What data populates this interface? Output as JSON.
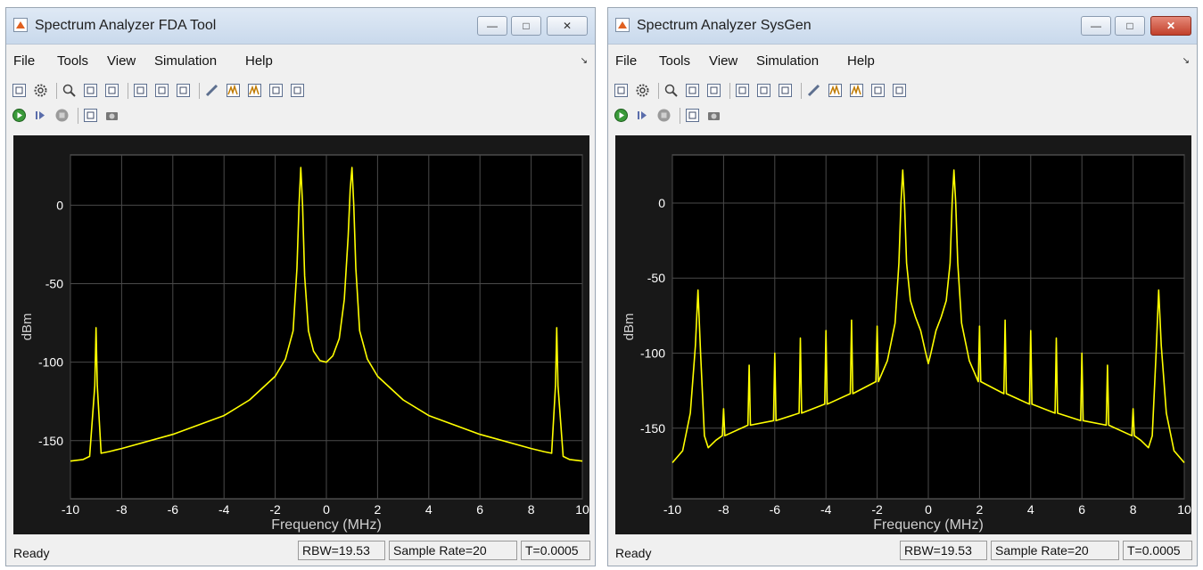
{
  "left_window": {
    "title": "Spectrum Analyzer FDA Tool",
    "menu": [
      "File",
      "Tools",
      "View",
      "Simulation",
      "Help"
    ],
    "status": {
      "ready": "Ready",
      "rbw": "RBW=19.53",
      "sample_rate": "Sample Rate=20",
      "time": "T=0.0005"
    }
  },
  "right_window": {
    "title": "Spectrum Analyzer SysGen",
    "menu": [
      "File",
      "Tools",
      "View",
      "Simulation",
      "Help"
    ],
    "status": {
      "ready": "Ready",
      "rbw": "RBW=19.53",
      "sample_rate": "Sample Rate=20",
      "time": "T=0.0005"
    }
  },
  "toolbar_icons": {
    "row1": [
      "settings-icon",
      "gear-icon",
      "zoom-in-icon",
      "zoom-x-icon",
      "zoom-y-icon",
      "pan-horizontal-icon",
      "pan-vertical-icon",
      "fit-to-view-icon",
      "measure-icon",
      "peak-finder-icon",
      "channel-measurements-icon",
      "distortion-icon",
      "ccdf-icon"
    ],
    "row2": [
      "run-icon",
      "step-icon",
      "stop-icon",
      "highlight-simulink-icon",
      "snapshot-icon"
    ]
  },
  "colors": {
    "trace": "#ffff00",
    "plot_bg": "#181818",
    "grid": "#4a4a4a",
    "axis_text": "#ffffff"
  },
  "chart_data": [
    {
      "type": "line",
      "xlabel": "Frequency (MHz)",
      "ylabel": "dBm",
      "xlim": [
        -10,
        10
      ],
      "ylim": [
        -187,
        32
      ],
      "xticks": [
        -10,
        -8,
        -6,
        -4,
        -2,
        0,
        2,
        4,
        6,
        8,
        10
      ],
      "yticks": [
        0,
        -50,
        -100,
        -150
      ],
      "grid": true,
      "series": [
        {
          "color": "#ffff00",
          "points": [
            [
              -10,
              -163
            ],
            [
              -9.5,
              -162
            ],
            [
              -9.25,
              -160
            ],
            [
              -9.05,
              -115
            ],
            [
              -9,
              -78
            ],
            [
              -8.95,
              -115
            ],
            [
              -8.8,
              -158
            ],
            [
              -8.5,
              -157
            ],
            [
              -8,
              -155
            ],
            [
              -6,
              -146
            ],
            [
              -4,
              -134
            ],
            [
              -3,
              -124
            ],
            [
              -2,
              -109
            ],
            [
              -1.6,
              -98
            ],
            [
              -1.3,
              -80
            ],
            [
              -1.15,
              -40
            ],
            [
              -1.07,
              0
            ],
            [
              -1,
              24
            ],
            [
              -0.93,
              0
            ],
            [
              -0.85,
              -45
            ],
            [
              -0.7,
              -80
            ],
            [
              -0.5,
              -93
            ],
            [
              -0.25,
              -99
            ],
            [
              0,
              -100
            ],
            [
              0.25,
              -96
            ],
            [
              0.5,
              -85
            ],
            [
              0.7,
              -60
            ],
            [
              0.85,
              -20
            ],
            [
              0.93,
              10
            ],
            [
              1,
              24
            ],
            [
              1.07,
              0
            ],
            [
              1.15,
              -40
            ],
            [
              1.3,
              -80
            ],
            [
              1.6,
              -98
            ],
            [
              2,
              -109
            ],
            [
              3,
              -124
            ],
            [
              4,
              -134
            ],
            [
              6,
              -146
            ],
            [
              8,
              -155
            ],
            [
              8.5,
              -157
            ],
            [
              8.8,
              -158
            ],
            [
              8.95,
              -115
            ],
            [
              9,
              -78
            ],
            [
              9.05,
              -115
            ],
            [
              9.25,
              -160
            ],
            [
              9.5,
              -162
            ],
            [
              10,
              -163
            ]
          ]
        }
      ]
    },
    {
      "type": "line",
      "xlabel": "Frequency (MHz)",
      "ylabel": "dBm",
      "xlim": [
        -10,
        10
      ],
      "ylim": [
        -197,
        32
      ],
      "xticks": [
        -10,
        -8,
        -6,
        -4,
        -2,
        0,
        2,
        4,
        6,
        8,
        10
      ],
      "yticks": [
        0,
        -50,
        -100,
        -150
      ],
      "grid": true,
      "series": [
        {
          "color": "#ffff00",
          "points": [
            [
              -10,
              -173
            ],
            [
              -9.6,
              -165
            ],
            [
              -9.3,
              -140
            ],
            [
              -9.1,
              -95
            ],
            [
              -9,
              -58
            ],
            [
              -8.9,
              -100
            ],
            [
              -8.75,
              -155
            ],
            [
              -8.6,
              -163
            ],
            [
              -8.3,
              -158
            ],
            [
              -8.05,
              -155
            ],
            [
              -8,
              -137
            ],
            [
              -7.95,
              -155
            ],
            [
              -7.05,
              -148
            ],
            [
              -7,
              -108
            ],
            [
              -6.95,
              -148
            ],
            [
              -6.05,
              -145
            ],
            [
              -6,
              -100
            ],
            [
              -5.95,
              -145
            ],
            [
              -5.05,
              -140
            ],
            [
              -5,
              -90
            ],
            [
              -4.95,
              -140
            ],
            [
              -4.05,
              -134
            ],
            [
              -4,
              -85
            ],
            [
              -3.95,
              -134
            ],
            [
              -3.05,
              -127
            ],
            [
              -3,
              -78
            ],
            [
              -2.95,
              -127
            ],
            [
              -2.05,
              -119
            ],
            [
              -2,
              -82
            ],
            [
              -1.95,
              -119
            ],
            [
              -1.6,
              -105
            ],
            [
              -1.3,
              -80
            ],
            [
              -1.15,
              -40
            ],
            [
              -1.07,
              0
            ],
            [
              -1,
              22
            ],
            [
              -0.93,
              0
            ],
            [
              -0.85,
              -40
            ],
            [
              -0.7,
              -65
            ],
            [
              -0.5,
              -76
            ],
            [
              -0.3,
              -85
            ],
            [
              -0.1,
              -100
            ],
            [
              0,
              -107
            ],
            [
              0.1,
              -100
            ],
            [
              0.3,
              -85
            ],
            [
              0.5,
              -76
            ],
            [
              0.7,
              -65
            ],
            [
              0.85,
              -40
            ],
            [
              0.93,
              0
            ],
            [
              1,
              22
            ],
            [
              1.07,
              0
            ],
            [
              1.15,
              -40
            ],
            [
              1.3,
              -80
            ],
            [
              1.6,
              -105
            ],
            [
              1.95,
              -119
            ],
            [
              2,
              -82
            ],
            [
              2.05,
              -119
            ],
            [
              2.95,
              -127
            ],
            [
              3,
              -78
            ],
            [
              3.05,
              -127
            ],
            [
              3.95,
              -134
            ],
            [
              4,
              -85
            ],
            [
              4.05,
              -134
            ],
            [
              4.95,
              -140
            ],
            [
              5,
              -90
            ],
            [
              5.05,
              -140
            ],
            [
              5.95,
              -145
            ],
            [
              6,
              -100
            ],
            [
              6.05,
              -145
            ],
            [
              6.95,
              -148
            ],
            [
              7,
              -108
            ],
            [
              7.05,
              -148
            ],
            [
              7.95,
              -155
            ],
            [
              8,
              -137
            ],
            [
              8.05,
              -155
            ],
            [
              8.3,
              -158
            ],
            [
              8.6,
              -163
            ],
            [
              8.75,
              -155
            ],
            [
              8.9,
              -100
            ],
            [
              9,
              -58
            ],
            [
              9.1,
              -95
            ],
            [
              9.3,
              -140
            ],
            [
              9.6,
              -165
            ],
            [
              10,
              -173
            ]
          ]
        }
      ]
    }
  ]
}
